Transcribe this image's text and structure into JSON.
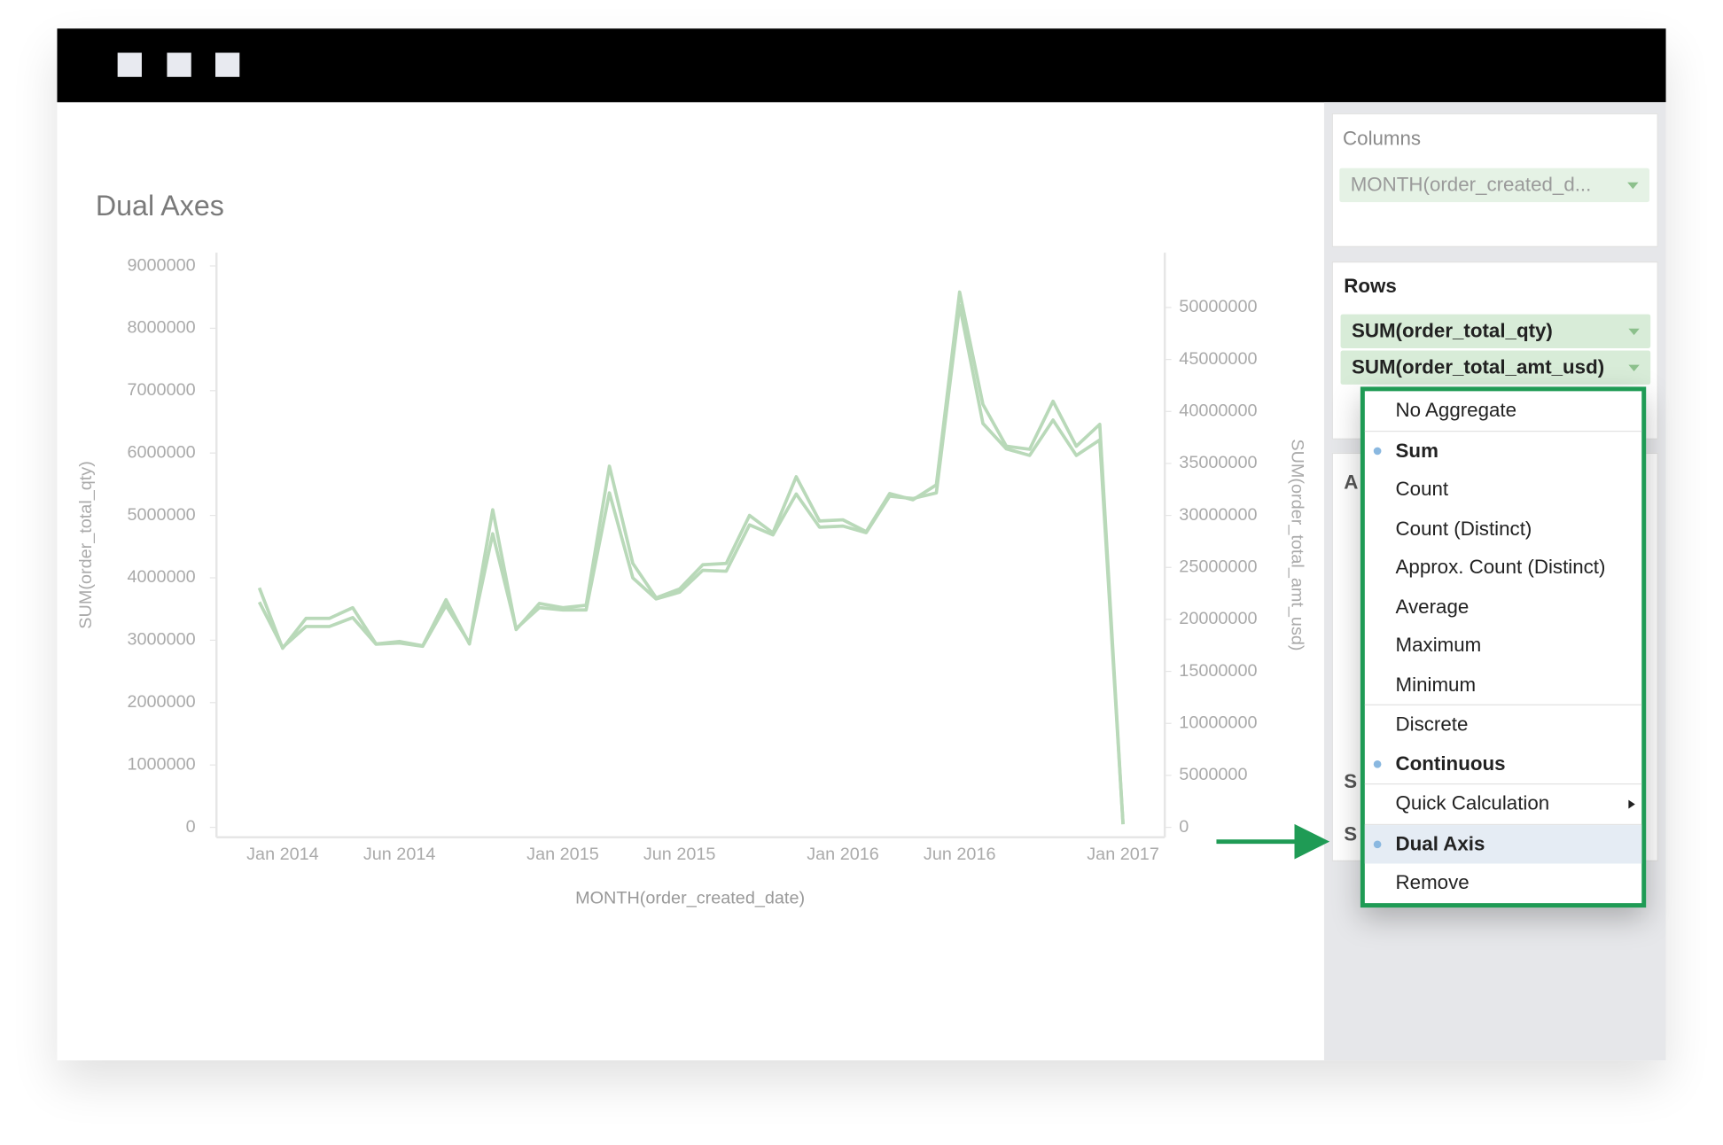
{
  "chart_data": {
    "type": "line",
    "title": "Dual Axes",
    "x_label": "MONTH(order_created_date)",
    "y_label": "SUM(order_total_qty)",
    "y2_label": "SUM(order_total_amt_usd)",
    "categories": [
      null,
      "Jan 2014",
      null,
      null,
      null,
      null,
      "Jun 2014",
      null,
      null,
      null,
      null,
      null,
      null,
      "Jan 2015",
      null,
      null,
      null,
      null,
      "Jun 2015",
      null,
      null,
      null,
      null,
      null,
      null,
      "Jan 2016",
      null,
      null,
      null,
      null,
      "Jun 2016",
      null,
      null,
      null,
      null,
      null,
      null,
      "Jan 2017"
    ],
    "series": [
      {
        "name": "SUM(order_total_qty)",
        "color": "#b9d9b9",
        "axis": "y",
        "values": [
          3840000,
          2870000,
          3350000,
          3350000,
          3520000,
          2940000,
          2980000,
          2910000,
          3650000,
          2940000,
          5090000,
          3170000,
          3590000,
          3520000,
          3560000,
          5790000,
          4230000,
          3680000,
          3820000,
          4210000,
          4230000,
          5000000,
          4720000,
          5620000,
          4910000,
          4930000,
          4740000,
          5350000,
          5250000,
          5490000,
          8580000,
          6780000,
          6110000,
          6060000,
          6830000,
          6110000,
          6460000,
          50000
        ]
      },
      {
        "name": "SUM(order_total_amt_usd)",
        "color": "#b9d9b9",
        "axis": "y2",
        "values": [
          21660000,
          17300000,
          19320000,
          19320000,
          20170000,
          17620000,
          17730000,
          17410000,
          21340000,
          17730000,
          28240000,
          19110000,
          21130000,
          20910000,
          20910000,
          32170000,
          23990000,
          21970000,
          22610000,
          24730000,
          24630000,
          29090000,
          28130000,
          32060000,
          28870000,
          28980000,
          28340000,
          31850000,
          31630000,
          32170000,
          50210000,
          38850000,
          36410000,
          35770000,
          39170000,
          35770000,
          37260000,
          320000
        ]
      }
    ],
    "ylim": [
      0,
      9000000
    ],
    "yticks": [
      0,
      1000000,
      2000000,
      3000000,
      4000000,
      5000000,
      6000000,
      7000000,
      8000000,
      9000000
    ],
    "y2lim": [
      0,
      54000000
    ],
    "y2ticks": [
      0,
      5000000,
      10000000,
      15000000,
      20000000,
      25000000,
      30000000,
      35000000,
      40000000,
      45000000,
      50000000
    ],
    "grid": false
  },
  "sidebar": {
    "columns": {
      "title": "Columns",
      "pills": [
        "MONTH(order_created_d..."
      ]
    },
    "rows": {
      "title": "Rows",
      "pills": [
        "SUM(order_total_qty)",
        "SUM(order_total_amt_usd)"
      ]
    },
    "obscured": [
      "A",
      "S",
      "S"
    ]
  },
  "menu": {
    "groups": [
      [
        {
          "label": "No Aggregate"
        }
      ],
      [
        {
          "label": "Sum",
          "selected": true
        },
        {
          "label": "Count"
        },
        {
          "label": "Count (Distinct)"
        },
        {
          "label": "Approx. Count (Distinct)"
        },
        {
          "label": "Average"
        },
        {
          "label": "Maximum"
        },
        {
          "label": "Minimum"
        }
      ],
      [
        {
          "label": "Discrete"
        },
        {
          "label": "Continuous",
          "selected": true
        }
      ],
      [
        {
          "label": "Quick Calculation",
          "submenu": true
        }
      ],
      [
        {
          "label": "Dual Axis",
          "selected": true,
          "highlighted": true
        },
        {
          "label": "Remove"
        }
      ]
    ]
  }
}
